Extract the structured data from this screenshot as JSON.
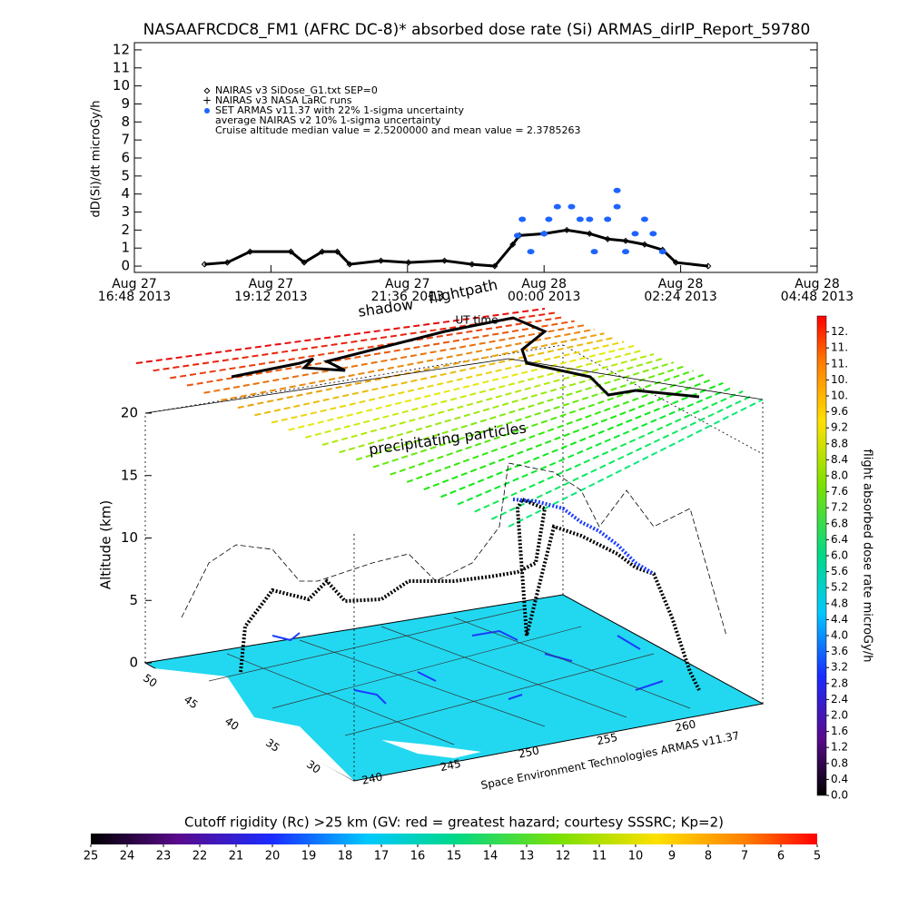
{
  "chart_data": [
    {
      "type": "line",
      "title": "NASAAFRCDC8_FM1 (AFRC DC-8)* absorbed dose rate (Si) ARMAS_dirIP_Report_59780",
      "y_label": "dD(Si)/dt microGy/h",
      "xlim": [
        "2013-08-27T16:48",
        "2013-08-28T04:48"
      ],
      "xticks": [
        {
          "value": "2013-08-27T16:48",
          "label": [
            "Aug 27",
            "16:48 2013"
          ]
        },
        {
          "value": "2013-08-27T19:12",
          "label": [
            "Aug 27",
            "19:12 2013"
          ]
        },
        {
          "value": "2013-08-27T21:36",
          "label": [
            "Aug 27",
            "21:36 2013"
          ]
        },
        {
          "value": "2013-08-28T00:00",
          "label": [
            "Aug 28",
            "00:00 2013"
          ]
        },
        {
          "value": "2013-08-28T02:24",
          "label": [
            "Aug 28",
            "02:24 2013"
          ]
        },
        {
          "value": "2013-08-28T04:48",
          "label": [
            "Aug 28",
            "04:48 2013"
          ]
        }
      ],
      "ylim": [
        -0.35,
        12.4
      ],
      "yticks": [
        0,
        1,
        2,
        3,
        4,
        5,
        6,
        7,
        8,
        9,
        10,
        11,
        12
      ],
      "series": [
        {
          "name": "NAIRAS v3 SiDose_G1.txt SEP=0",
          "color": "#000000",
          "x": [
            "2013-08-27T18:02",
            "2013-08-27T18:26",
            "2013-08-27T18:50",
            "2013-08-27T19:33",
            "2013-08-27T19:47",
            "2013-08-27T20:06",
            "2013-08-27T20:22",
            "2013-08-27T20:35",
            "2013-08-27T21:08",
            "2013-08-27T21:37",
            "2013-08-27T22:15",
            "2013-08-27T22:44",
            "2013-08-27T23:08",
            "2013-08-27T23:27",
            "2013-08-27T23:34",
            "2013-08-28T00:00",
            "2013-08-28T00:24",
            "2013-08-28T00:48",
            "2013-08-28T01:07",
            "2013-08-28T01:26",
            "2013-08-28T01:46",
            "2013-08-28T02:05",
            "2013-08-28T02:19",
            "2013-08-28T02:53"
          ],
          "values": [
            0.1,
            0.2,
            0.8,
            0.8,
            0.2,
            0.8,
            0.8,
            0.1,
            0.3,
            0.2,
            0.3,
            0.1,
            0,
            1.2,
            1.7,
            1.8,
            2.0,
            1.8,
            1.5,
            1.4,
            1.2,
            0.9,
            0.2,
            0
          ]
        },
        {
          "name": "SET ARMAS v11.37 with 22% 1-sigma uncertainty",
          "color": "#1e64ff",
          "x": [
            "2013-08-27T23:32",
            "2013-08-27T23:37",
            "2013-08-27T23:46",
            "2013-08-28T00:00",
            "2013-08-28T00:05",
            "2013-08-28T00:14",
            "2013-08-28T00:29",
            "2013-08-28T00:38",
            "2013-08-28T00:48",
            "2013-08-28T00:53",
            "2013-08-28T01:07",
            "2013-08-28T01:17",
            "2013-08-28T01:17",
            "2013-08-28T01:26",
            "2013-08-28T01:36",
            "2013-08-28T01:46",
            "2013-08-28T01:55",
            "2013-08-28T02:05"
          ],
          "values": [
            1.7,
            2.6,
            0.8,
            1.8,
            2.6,
            3.3,
            3.3,
            2.6,
            2.6,
            0.8,
            2.6,
            4.2,
            3.3,
            0.8,
            1.8,
            2.6,
            1.8,
            0.8
          ]
        }
      ],
      "legend_notes": [
        "NAIRAS v3 NASA LaRC runs",
        "average NAIRAS v2 10% 1-sigma uncertainty",
        "Cruise altitude median value = 2.5200000 and mean value = 2.3785263"
      ]
    },
    {
      "type": "colorbar",
      "orientation": "vertical",
      "label": "flight absorbed dose rate microGy/h",
      "lim": [
        0,
        12
      ],
      "ticks": [
        {
          "value": 0,
          "label": "0.0"
        },
        0.4,
        0.8,
        1.2,
        1.6,
        {
          "value": 2,
          "label": "2.0"
        },
        2.4,
        2.8,
        3.2,
        3.6,
        {
          "value": 4,
          "label": "4.0"
        },
        4.4,
        4.8,
        5.2,
        5.6,
        {
          "value": 6,
          "label": "6.0"
        },
        6.4,
        6.8,
        7.2,
        7.6,
        {
          "value": 8,
          "label": "8.0"
        },
        8.4,
        8.8,
        9.2,
        9.6,
        {
          "value": 10.0,
          "label": "10."
        },
        {
          "value": 10.4,
          "label": "10."
        },
        {
          "value": 10.8,
          "label": "11."
        },
        {
          "value": 11.2,
          "label": "11."
        },
        {
          "value": 11.6,
          "label": "12."
        }
      ]
    },
    {
      "type": "colorbar",
      "orientation": "horizontal",
      "label": "Cutoff rigidity (Rc) >25 km (GV: red = greatest hazard; courtesy SSSRC; Kp=2)",
      "lim": [
        25,
        5
      ],
      "ticks": [
        25,
        24,
        23,
        22,
        21,
        20,
        19,
        18,
        17,
        16,
        15,
        14,
        13,
        12,
        11,
        10,
        9,
        8,
        7,
        6,
        5
      ]
    }
  ],
  "scene": {
    "labels": {
      "shadow": "shadow",
      "flightpath": "flightpath",
      "ut": "UT time",
      "particles": "precipitating particles",
      "altitude": "Altitude (km)",
      "credit": "Space Environment Technologies ARMAS v11.37"
    },
    "altitude_ticks": [
      0,
      5,
      10,
      15,
      20
    ],
    "lat_ticks": [
      50,
      45,
      40,
      35,
      30
    ],
    "lon_ticks": [
      240,
      245,
      250,
      255,
      260
    ]
  }
}
